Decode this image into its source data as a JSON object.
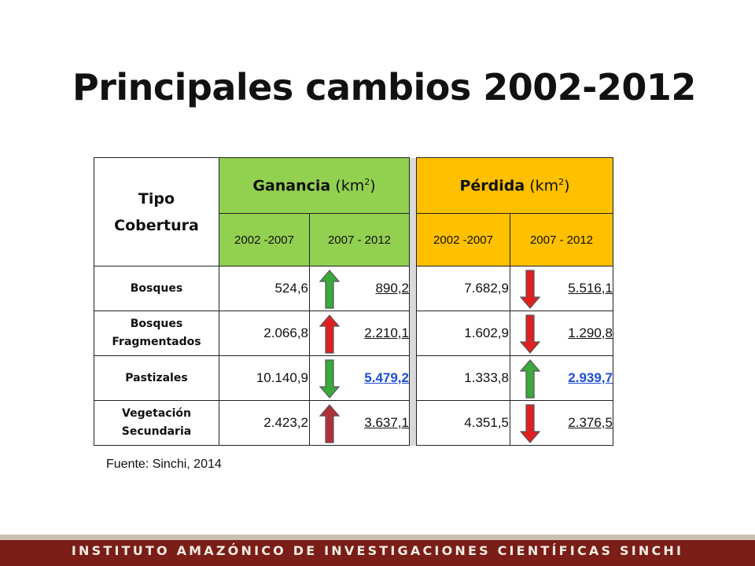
{
  "title": "Principales cambios 2002-2012",
  "table": {
    "header_tipo_line1": "Tipo",
    "header_tipo_line2": "Cobertura",
    "ganancia_bold": "Ganancia",
    "ganancia_unit": " (km",
    "unit_sup": "2",
    "unit_close": ")",
    "perdida_bold": "Pérdida",
    "perdida_unit": " (km",
    "periods": [
      "2002 -2007",
      "2007 - 2012",
      "2002 -2007",
      "2007 - 2012"
    ],
    "rows": [
      {
        "name_line1": "Bosques",
        "name_line2": "",
        "g1": "524,6",
        "g_arrow": "up",
        "g_arrow_color": "green",
        "g2": "890,2",
        "g2_link": false,
        "p1": "7.682,9",
        "p_arrow": "down",
        "p_arrow_color": "red",
        "p2": "5.516,1",
        "p2_link": false
      },
      {
        "name_line1": "Bosques",
        "name_line2": "Fragmentados",
        "g1": "2.066,8",
        "g_arrow": "up",
        "g_arrow_color": "red",
        "g2": "2.210,1",
        "g2_link": false,
        "p1": "1.602,9",
        "p_arrow": "down",
        "p_arrow_color": "red",
        "p2": "1.290,8",
        "p2_link": false
      },
      {
        "name_line1": "Pastizales",
        "name_line2": "",
        "g1": "10.140,9",
        "g_arrow": "down",
        "g_arrow_color": "green",
        "g2": "5.479,2",
        "g2_link": true,
        "p1": "1.333,8",
        "p_arrow": "up",
        "p_arrow_color": "green",
        "p2": "2.939,7",
        "p2_link": true
      },
      {
        "name_line1": "Vegetación",
        "name_line2": "Secundaria",
        "g1": "2.423,2",
        "g_arrow": "up",
        "g_arrow_color": "darkred",
        "g2": "3.637,1",
        "g2_link": false,
        "p1": "4.351,5",
        "p_arrow": "down",
        "p_arrow_color": "red",
        "p2": "2.376,5",
        "p2_link": false
      }
    ]
  },
  "source": "Fuente: Sinchi, 2014",
  "footer": "INSTITUTO AMAZÓNICO DE INVESTIGACIONES CIENTÍFICAS SINCHI",
  "colors": {
    "ganancia_header": "#92d050",
    "perdida_header": "#ffc000",
    "footer_bg": "#7a1e17",
    "link": "#1f4dd8",
    "arrow_green": "#3aa83a",
    "arrow_red": "#e02020",
    "arrow_darkred": "#b0303a"
  }
}
